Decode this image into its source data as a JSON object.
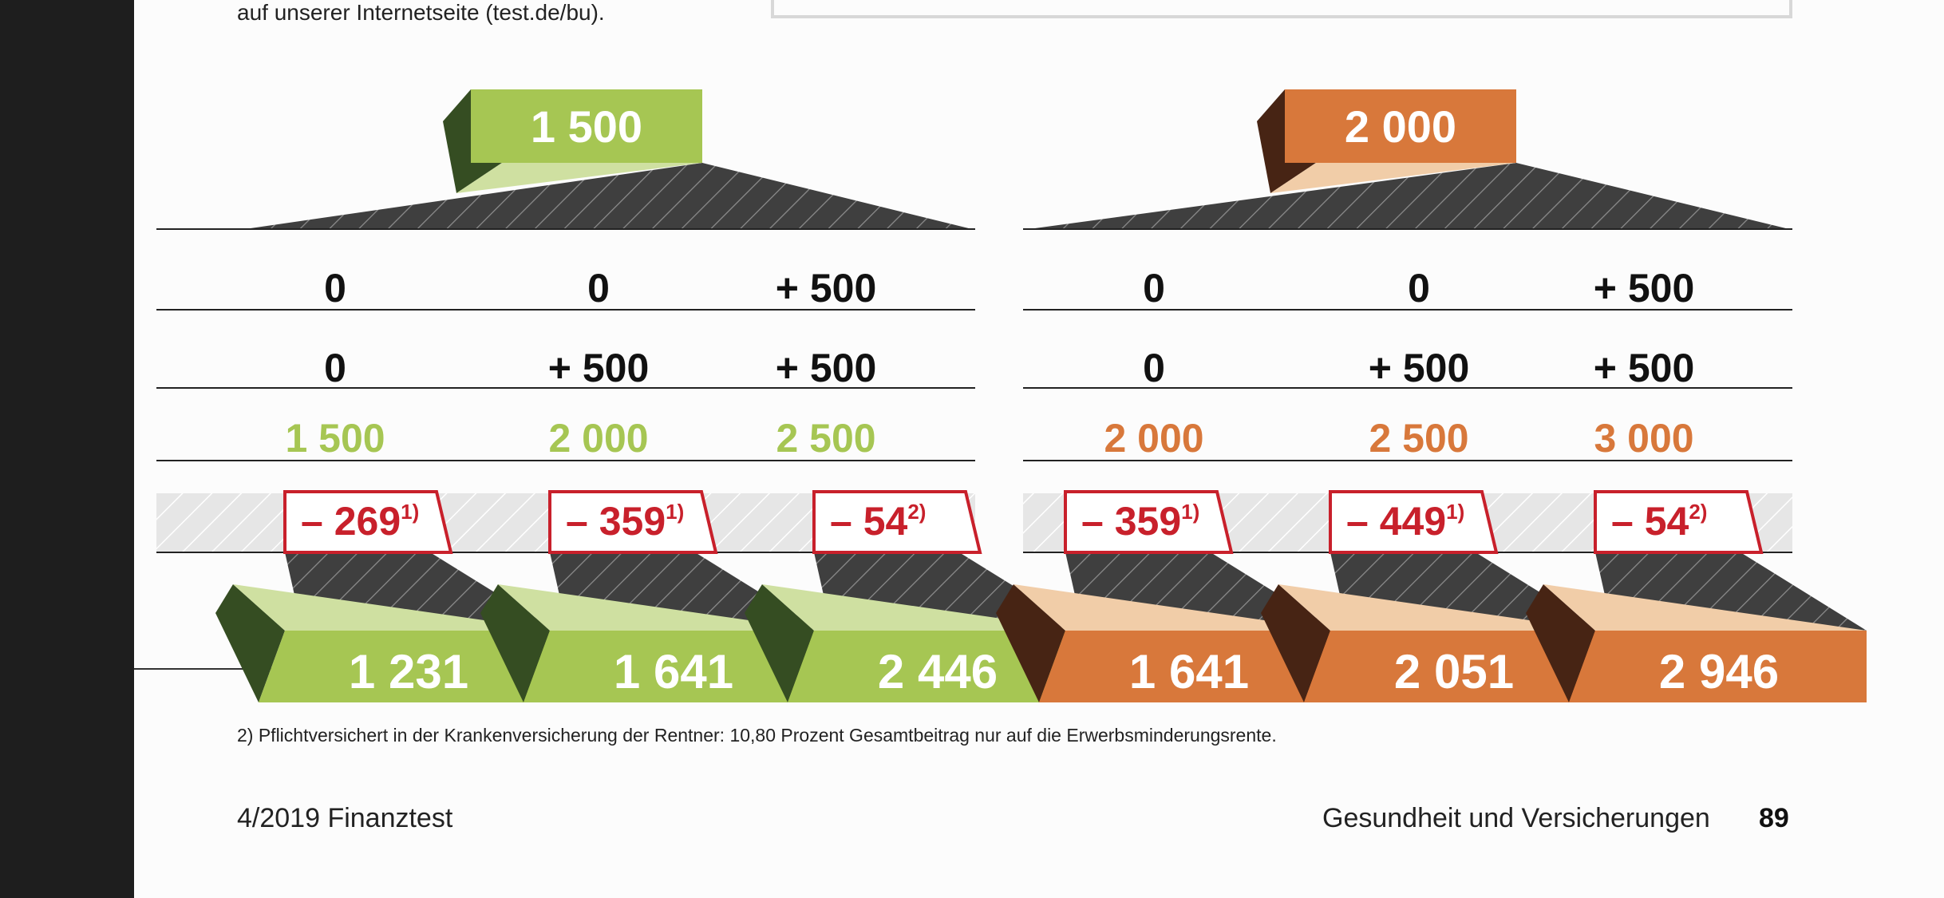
{
  "intro_text": "auf unserer Internetseite (test.de/bu).",
  "colors": {
    "green": "#a6c653",
    "green_dark": "#354d22",
    "green_light": "#cfe0a1",
    "orange": "#d8783b",
    "orange_dark": "#472414",
    "orange_light": "#f1cda8",
    "red": "#c8202b",
    "hatch": "#3f3f3f"
  },
  "groups": [
    {
      "id": "green",
      "top_value": "1 500",
      "row1": [
        "0",
        "0",
        "+ 500"
      ],
      "row2": [
        "0",
        "+ 500",
        "+ 500"
      ],
      "totals": [
        "1 500",
        "2 000",
        "2 500"
      ],
      "deductions": [
        {
          "value": "– 269",
          "note": "1)"
        },
        {
          "value": "– 359",
          "note": "1)"
        },
        {
          "value": "– 54",
          "note": "2)"
        }
      ],
      "results": [
        "1 231",
        "1 641",
        "2 446"
      ]
    },
    {
      "id": "orange",
      "top_value": "2 000",
      "row1": [
        "0",
        "0",
        "+ 500"
      ],
      "row2": [
        "0",
        "+ 500",
        "+ 500"
      ],
      "totals": [
        "2 000",
        "2 500",
        "3 000"
      ],
      "deductions": [
        {
          "value": "– 359",
          "note": "1)"
        },
        {
          "value": "– 449",
          "note": "1)"
        },
        {
          "value": "– 54",
          "note": "2)"
        }
      ],
      "results": [
        "1 641",
        "2 051",
        "2 946"
      ]
    }
  ],
  "footnote": "2) Pflichtversichert in der Krankenversicherung der Rentner: 10,80 Prozent Gesamtbeitrag nur auf die Erwerbsminderungsrente.",
  "page_footer": {
    "left": "4/2019 Finanztest",
    "right": "Gesundheit und Versicherungen",
    "page_number": "89"
  }
}
